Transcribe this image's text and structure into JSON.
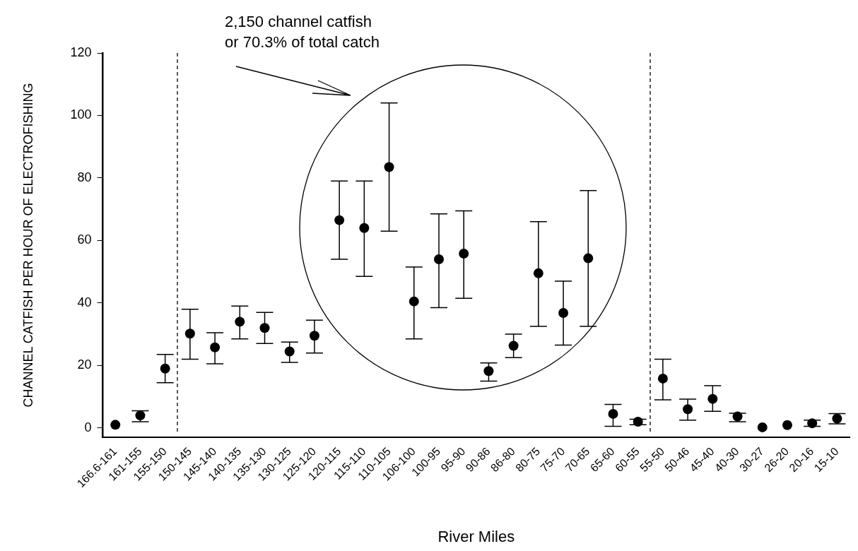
{
  "chart_data": {
    "type": "scatter",
    "xlabel": "River Miles",
    "ylabel": "CHANNEL CATFISH PER HOUR OF ELECTROFISHING",
    "annotations": [
      "2,150 channel catfish\nor 70.3% of total catch"
    ],
    "categories": [
      "166.6-161",
      "161-155",
      "155-150",
      "150-145",
      "145-140",
      "140-135",
      "135-130",
      "130-125",
      "125-120",
      "120-115",
      "115-110",
      "110-105",
      "106-100",
      "100-95",
      "95-90",
      "90-86",
      "86-80",
      "80-75",
      "75-70",
      "70-65",
      "65-60",
      "60-55",
      "55-50",
      "50-46",
      "45-40",
      "40-30",
      "30-27",
      "26-20",
      "20-16",
      "15-10"
    ],
    "values": [
      1,
      4,
      19,
      30.2,
      25.8,
      34,
      32,
      24.5,
      29.5,
      66.5,
      64,
      83.5,
      40.5,
      54,
      55.8,
      18.2,
      26.3,
      49.5,
      36.8,
      54.3,
      4.5,
      2,
      15.8,
      6,
      9.3,
      3.7,
      0.2,
      0.9,
      1.5,
      3
    ],
    "errors": [
      null,
      [
        2,
        5.5
      ],
      [
        14.5,
        23.5
      ],
      [
        22,
        38
      ],
      [
        20.5,
        30.5
      ],
      [
        28.5,
        39
      ],
      [
        27,
        37
      ],
      [
        21,
        27.5
      ],
      [
        24,
        34.5
      ],
      [
        54,
        79
      ],
      [
        48.5,
        79
      ],
      [
        63,
        104
      ],
      [
        28.5,
        51.5
      ],
      [
        38.5,
        68.5
      ],
      [
        41.5,
        69.5
      ],
      [
        15,
        20.8
      ],
      [
        22.5,
        30
      ],
      [
        32.5,
        66
      ],
      [
        26.5,
        47
      ],
      [
        32.5,
        76
      ],
      [
        0.5,
        7.5
      ],
      [
        1,
        2.8
      ],
      [
        9,
        22
      ],
      [
        2.5,
        9.2
      ],
      [
        5.3,
        13.5
      ],
      [
        2,
        4.7
      ],
      null,
      null,
      [
        0.5,
        2.5
      ],
      [
        1.3,
        4.6
      ]
    ],
    "color": "#000000",
    "marker": "circle",
    "ylim": [
      -3,
      120
    ],
    "yticks": [
      0,
      20,
      40,
      60,
      80,
      100,
      120
    ],
    "grid": false,
    "legend": false
  }
}
